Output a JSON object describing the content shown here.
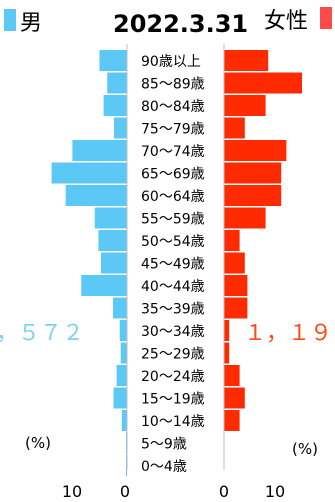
{
  "chart_data": {
    "type": "bar",
    "title": "2022.3.31",
    "categories": [
      "90歳以上",
      "85～89歳",
      "80～84歳",
      "75～79歳",
      "70～74歳",
      "65～69歳",
      "60～64歳",
      "55～59歳",
      "50～54歳",
      "45～49歳",
      "40～44歳",
      "35～39歳",
      "30～34歳",
      "25～29歳",
      "20～24歳",
      "15～19歳",
      "10～14歳",
      "5～9歳",
      "0～4歳"
    ],
    "series": [
      {
        "name": "男",
        "color": "#5bc8f5",
        "values": [
          5.3,
          3.8,
          4.5,
          2.5,
          10.5,
          14.5,
          11.8,
          6.2,
          5.5,
          5.0,
          8.8,
          2.7,
          1.4,
          1.2,
          2.0,
          2.6,
          1.0,
          0.2,
          0.2
        ]
      },
      {
        "name": "女性",
        "color": "#ff2a00",
        "values": [
          8.5,
          15.0,
          8.0,
          4.0,
          12.0,
          11.0,
          11.0,
          8.0,
          3.0,
          4.0,
          4.5,
          4.5,
          1.0,
          1.0,
          3.0,
          4.0,
          3.0,
          0.0,
          0.0
        ]
      }
    ],
    "xlim": [
      0,
      15
    ],
    "xticks_left": [
      "10",
      "0"
    ],
    "xticks_right": [
      "0",
      "10"
    ],
    "unit_left": "(%)",
    "unit_right": "(%)",
    "total_left": "，５７２",
    "total_right": "１，１９"
  }
}
